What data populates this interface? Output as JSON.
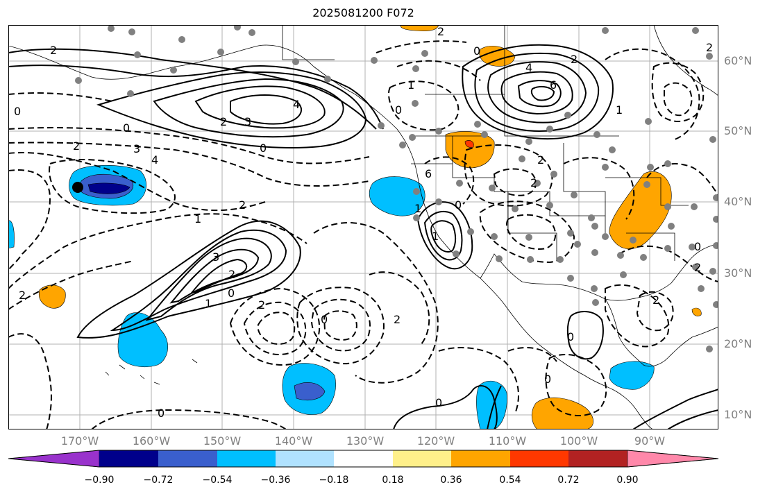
{
  "title": "2025081200 F072",
  "lat_labels": [
    "60°N",
    "50°N",
    "40°N",
    "30°N",
    "20°N",
    "10°N"
  ],
  "lon_labels": [
    "170°W",
    "160°W",
    "150°W",
    "140°W",
    "130°W",
    "120°W",
    "110°W",
    "100°W",
    "90°W"
  ],
  "colorbar": {
    "ticks": [
      "−0.90",
      "−0.72",
      "−0.54",
      "−0.36",
      "−0.18",
      "0.18",
      "0.36",
      "0.54",
      "0.72",
      "0.90"
    ],
    "colors": [
      "#9932cc",
      "#00008b",
      "#3a5fcd",
      "#00bfff",
      "#b0e2ff",
      "#ffffff",
      "#fff08a",
      "#ffa500",
      "#ff3800",
      "#b22222",
      "#ff88aa"
    ]
  },
  "contour_labels": {
    "lbl1": "2",
    "lbl2": "4",
    "lbl3": "3",
    "lbl4": "2",
    "lbl5": "0",
    "lbl6": "0",
    "lbl7": "2",
    "lbl8": "3",
    "lbl9": "4",
    "lbl10": "2",
    "lbl11": "1",
    "lbl12": "3",
    "lbl13": "2",
    "lbl14": "1",
    "lbl15": "0",
    "lbl16": "2",
    "lbl17": "2",
    "lbl18": "0",
    "lbl19": "2",
    "lbl20": "0",
    "lbl21": "0",
    "lbl22": "4",
    "lbl23": "6",
    "lbl24": "1",
    "lbl25": "0",
    "lbl26": "2",
    "lbl27": "2",
    "lbl28": "2",
    "lbl29": "1",
    "lbl30": "0",
    "lbl31": "0",
    "lbl32": "2",
    "lbl33": "1",
    "lbl34": "0",
    "lbl35": "2",
    "lbl36": "1",
    "lbl37": "0",
    "lbl38": "0",
    "lbl39": "0",
    "lbl40": "2",
    "lbl41": "6",
    "lbl42": "2"
  }
}
